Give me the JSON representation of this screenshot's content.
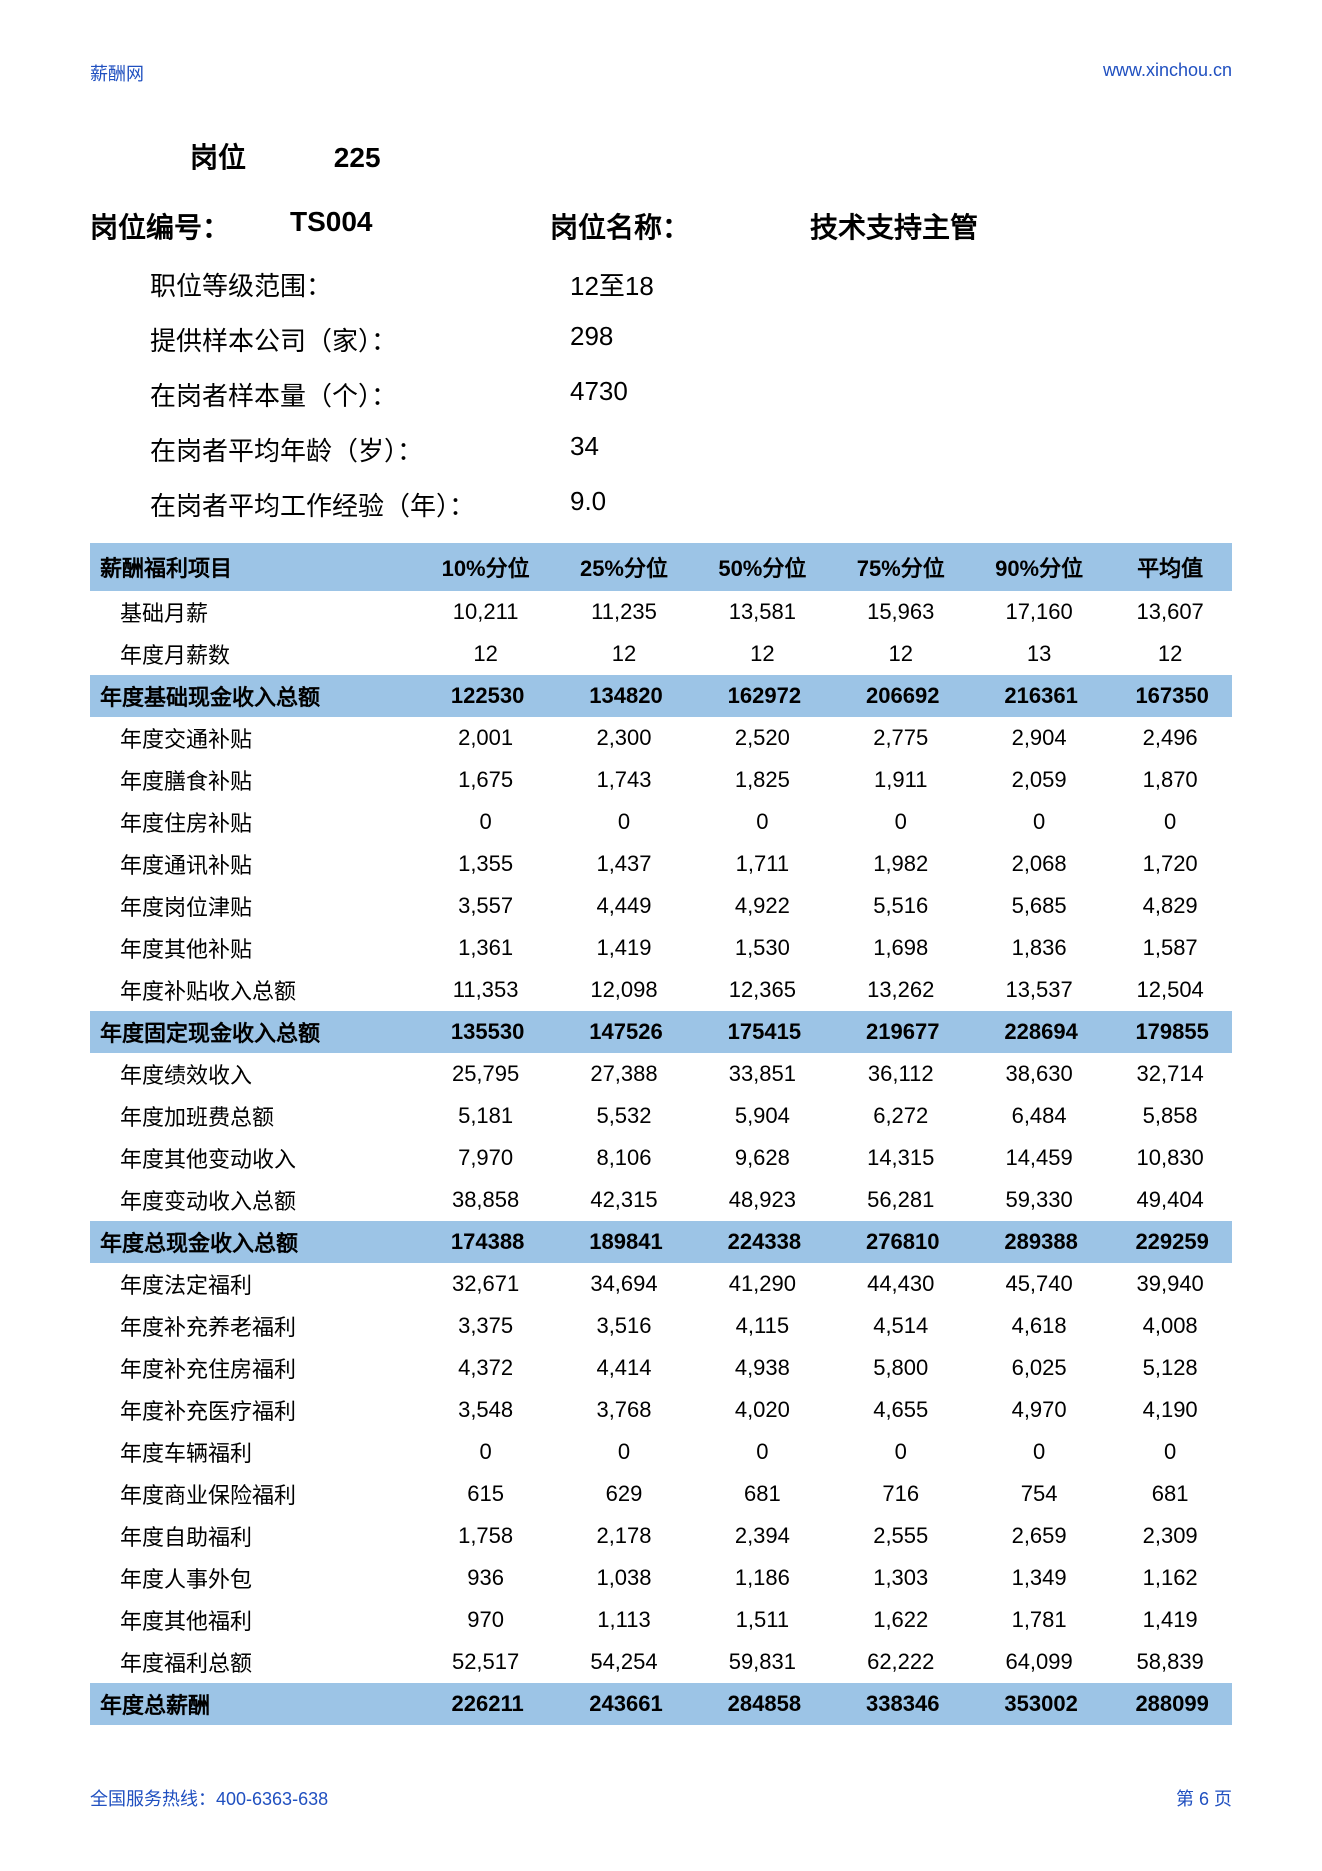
{
  "header": {
    "left": "薪酬网",
    "right": "www.xinchou.cn"
  },
  "position": {
    "label": "岗位",
    "number": "225"
  },
  "meta": {
    "code_label": "岗位编号：",
    "code_value": "TS004",
    "name_label": "岗位名称：",
    "name_value": "技术支持主管"
  },
  "info": [
    {
      "label": "职位等级范围：",
      "value": "12至18"
    },
    {
      "label": "提供样本公司（家）：",
      "value": "298"
    },
    {
      "label": "在岗者样本量（个）：",
      "value": "4730"
    },
    {
      "label": "在岗者平均年龄（岁）：",
      "value": "34"
    },
    {
      "label": "在岗者平均工作经验（年）：",
      "value": "9.0"
    }
  ],
  "columns": [
    "薪酬福利项目",
    "10%分位",
    "25%分位",
    "50%分位",
    "75%分位",
    "90%分位",
    "平均值"
  ],
  "rows": [
    {
      "s": false,
      "c": [
        "基础月薪",
        "10,211",
        "11,235",
        "13,581",
        "15,963",
        "17,160",
        "13,607"
      ]
    },
    {
      "s": false,
      "c": [
        "年度月薪数",
        "12",
        "12",
        "12",
        "12",
        "13",
        "12"
      ]
    },
    {
      "s": true,
      "c": [
        "年度基础现金收入总额",
        "122530",
        "134820",
        "162972",
        "206692",
        "216361",
        "167350"
      ]
    },
    {
      "s": false,
      "c": [
        "年度交通补贴",
        "2,001",
        "2,300",
        "2,520",
        "2,775",
        "2,904",
        "2,496"
      ]
    },
    {
      "s": false,
      "c": [
        "年度膳食补贴",
        "1,675",
        "1,743",
        "1,825",
        "1,911",
        "2,059",
        "1,870"
      ]
    },
    {
      "s": false,
      "c": [
        "年度住房补贴",
        "0",
        "0",
        "0",
        "0",
        "0",
        "0"
      ]
    },
    {
      "s": false,
      "c": [
        "年度通讯补贴",
        "1,355",
        "1,437",
        "1,711",
        "1,982",
        "2,068",
        "1,720"
      ]
    },
    {
      "s": false,
      "c": [
        "年度岗位津贴",
        "3,557",
        "4,449",
        "4,922",
        "5,516",
        "5,685",
        "4,829"
      ]
    },
    {
      "s": false,
      "c": [
        "年度其他补贴",
        "1,361",
        "1,419",
        "1,530",
        "1,698",
        "1,836",
        "1,587"
      ]
    },
    {
      "s": false,
      "c": [
        "年度补贴收入总额",
        "11,353",
        "12,098",
        "12,365",
        "13,262",
        "13,537",
        "12,504"
      ]
    },
    {
      "s": true,
      "c": [
        "年度固定现金收入总额",
        "135530",
        "147526",
        "175415",
        "219677",
        "228694",
        "179855"
      ]
    },
    {
      "s": false,
      "c": [
        "年度绩效收入",
        "25,795",
        "27,388",
        "33,851",
        "36,112",
        "38,630",
        "32,714"
      ]
    },
    {
      "s": false,
      "c": [
        "年度加班费总额",
        "5,181",
        "5,532",
        "5,904",
        "6,272",
        "6,484",
        "5,858"
      ]
    },
    {
      "s": false,
      "c": [
        "年度其他变动收入",
        "7,970",
        "8,106",
        "9,628",
        "14,315",
        "14,459",
        "10,830"
      ]
    },
    {
      "s": false,
      "c": [
        "年度变动收入总额",
        "38,858",
        "42,315",
        "48,923",
        "56,281",
        "59,330",
        "49,404"
      ]
    },
    {
      "s": true,
      "c": [
        "年度总现金收入总额",
        "174388",
        "189841",
        "224338",
        "276810",
        "289388",
        "229259"
      ]
    },
    {
      "s": false,
      "c": [
        "年度法定福利",
        "32,671",
        "34,694",
        "41,290",
        "44,430",
        "45,740",
        "39,940"
      ]
    },
    {
      "s": false,
      "c": [
        "年度补充养老福利",
        "3,375",
        "3,516",
        "4,115",
        "4,514",
        "4,618",
        "4,008"
      ]
    },
    {
      "s": false,
      "c": [
        "年度补充住房福利",
        "4,372",
        "4,414",
        "4,938",
        "5,800",
        "6,025",
        "5,128"
      ]
    },
    {
      "s": false,
      "c": [
        "年度补充医疗福利",
        "3,548",
        "3,768",
        "4,020",
        "4,655",
        "4,970",
        "4,190"
      ]
    },
    {
      "s": false,
      "c": [
        "年度车辆福利",
        "0",
        "0",
        "0",
        "0",
        "0",
        "0"
      ]
    },
    {
      "s": false,
      "c": [
        "年度商业保险福利",
        "615",
        "629",
        "681",
        "716",
        "754",
        "681"
      ]
    },
    {
      "s": false,
      "c": [
        "年度自助福利",
        "1,758",
        "2,178",
        "2,394",
        "2,555",
        "2,659",
        "2,309"
      ]
    },
    {
      "s": false,
      "c": [
        "年度人事外包",
        "936",
        "1,038",
        "1,186",
        "1,303",
        "1,349",
        "1,162"
      ]
    },
    {
      "s": false,
      "c": [
        "年度其他福利",
        "970",
        "1,113",
        "1,511",
        "1,622",
        "1,781",
        "1,419"
      ]
    },
    {
      "s": false,
      "c": [
        "年度福利总额",
        "52,517",
        "54,254",
        "59,831",
        "62,222",
        "64,099",
        "58,839"
      ]
    },
    {
      "s": true,
      "c": [
        "年度总薪酬",
        "226211",
        "243661",
        "284858",
        "338346",
        "353002",
        "288099"
      ]
    }
  ],
  "footer": {
    "left": "全国服务热线：400-6363-638",
    "right": "第 6 页"
  }
}
